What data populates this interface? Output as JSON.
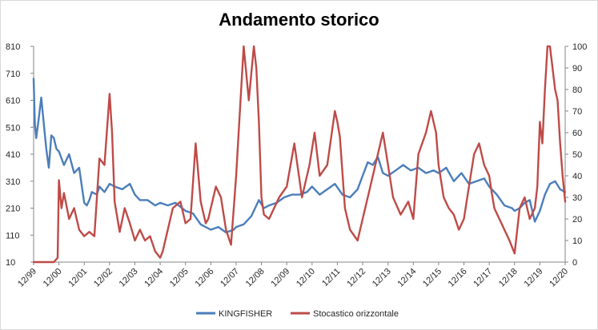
{
  "chart_data": {
    "type": "line",
    "title": "Andamento storico",
    "xlabel": "",
    "ylabel": "",
    "categories": [
      "12/99",
      "12/00",
      "12/01",
      "12/02",
      "12/03",
      "12/04",
      "12/05",
      "12/06",
      "12/07",
      "12/08",
      "12/09",
      "12/10",
      "12/11",
      "12/12",
      "12/13",
      "12/14",
      "12/15",
      "12/16",
      "12/17",
      "12/18",
      "12/19",
      "12/20"
    ],
    "y_left": {
      "ticks": [
        "810",
        "710",
        "610",
        "510",
        "410",
        "310",
        "210",
        "110",
        "10"
      ],
      "lim": [
        10,
        810
      ]
    },
    "y_right": {
      "ticks": [
        "100",
        "90",
        "80",
        "70",
        "60",
        "50",
        "40",
        "30",
        "20",
        "10",
        "0"
      ],
      "lim": [
        0,
        100
      ]
    },
    "grid": false,
    "legend_position": "bottom",
    "series": [
      {
        "name": "KINGFISHER",
        "axis": "left",
        "color": "#4a7ebb",
        "x": [
          0,
          0.05,
          0.1,
          0.2,
          0.3,
          0.5,
          0.6,
          0.7,
          0.8,
          0.9,
          1.0,
          1.2,
          1.4,
          1.6,
          1.8,
          2.0,
          2.1,
          2.2,
          2.3,
          2.5,
          2.6,
          2.8,
          3.0,
          3.2,
          3.5,
          3.8,
          4.0,
          4.2,
          4.5,
          4.8,
          5.0,
          5.3,
          5.6,
          6.0,
          6.3,
          6.6,
          7.0,
          7.3,
          7.6,
          7.9,
          8.0,
          8.3,
          8.6,
          8.9,
          9.1,
          9.3,
          9.6,
          9.9,
          10.2,
          10.5,
          10.8,
          11.0,
          11.3,
          11.6,
          11.9,
          12.2,
          12.5,
          12.8,
          13.0,
          13.2,
          13.4,
          13.6,
          13.8,
          14.0,
          14.3,
          14.6,
          14.9,
          15.2,
          15.5,
          15.8,
          16.0,
          16.3,
          16.6,
          16.9,
          17.2,
          17.5,
          17.8,
          18.0,
          18.3,
          18.6,
          18.9,
          19.0,
          19.2,
          19.4,
          19.6,
          19.8,
          20.0,
          20.2,
          20.4,
          20.6,
          20.8,
          21.0
        ],
        "values": [
          690,
          520,
          470,
          540,
          620,
          430,
          360,
          480,
          470,
          430,
          420,
          370,
          410,
          340,
          360,
          230,
          220,
          240,
          270,
          260,
          290,
          270,
          300,
          290,
          280,
          300,
          260,
          240,
          240,
          220,
          230,
          220,
          230,
          200,
          190,
          150,
          130,
          140,
          120,
          130,
          140,
          150,
          180,
          240,
          210,
          220,
          230,
          250,
          260,
          260,
          270,
          290,
          260,
          280,
          300,
          260,
          250,
          280,
          330,
          380,
          370,
          400,
          340,
          330,
          350,
          370,
          350,
          360,
          340,
          350,
          340,
          360,
          310,
          340,
          300,
          310,
          320,
          290,
          260,
          220,
          210,
          200,
          210,
          230,
          240,
          160,
          200,
          260,
          300,
          310,
          280,
          270
        ]
      },
      {
        "name": "Stocastico orizzontale",
        "axis": "right",
        "color": "#be4b48",
        "x": [
          0,
          0.8,
          0.95,
          1.0,
          1.1,
          1.2,
          1.4,
          1.6,
          1.8,
          2.0,
          2.2,
          2.4,
          2.6,
          2.8,
          3.0,
          3.1,
          3.2,
          3.4,
          3.6,
          3.8,
          4.0,
          4.2,
          4.4,
          4.6,
          4.8,
          5.0,
          5.1,
          5.3,
          5.5,
          5.8,
          6.0,
          6.2,
          6.4,
          6.6,
          6.8,
          6.9,
          7.0,
          7.2,
          7.4,
          7.6,
          7.8,
          8.0,
          8.1,
          8.3,
          8.5,
          8.7,
          8.8,
          8.9,
          9.0,
          9.1,
          9.3,
          9.5,
          9.7,
          10.0,
          10.3,
          10.6,
          10.9,
          11.1,
          11.3,
          11.6,
          11.9,
          12.0,
          12.1,
          12.3,
          12.5,
          12.8,
          13.0,
          13.2,
          13.4,
          13.6,
          13.8,
          14.0,
          14.2,
          14.5,
          14.8,
          15.0,
          15.2,
          15.5,
          15.7,
          15.9,
          16.0,
          16.2,
          16.4,
          16.6,
          16.8,
          17.0,
          17.2,
          17.4,
          17.6,
          17.8,
          18.0,
          18.1,
          18.2,
          18.4,
          18.6,
          18.8,
          19.0,
          19.2,
          19.4,
          19.6,
          19.8,
          19.9,
          20.0,
          20.1,
          20.2,
          20.3,
          20.4,
          20.5,
          20.6,
          20.7,
          20.8,
          20.9,
          21.0
        ],
        "values": [
          0,
          0,
          2,
          38,
          25,
          32,
          20,
          25,
          15,
          12,
          14,
          12,
          48,
          45,
          78,
          60,
          28,
          14,
          25,
          18,
          10,
          15,
          10,
          12,
          5,
          2,
          5,
          15,
          25,
          28,
          18,
          20,
          55,
          28,
          18,
          20,
          25,
          35,
          30,
          15,
          8,
          40,
          60,
          100,
          75,
          100,
          90,
          65,
          30,
          22,
          20,
          25,
          30,
          35,
          55,
          30,
          45,
          60,
          40,
          45,
          70,
          65,
          58,
          25,
          15,
          10,
          20,
          30,
          40,
          50,
          60,
          45,
          30,
          22,
          28,
          20,
          50,
          60,
          70,
          60,
          45,
          30,
          25,
          22,
          15,
          20,
          35,
          50,
          55,
          45,
          40,
          32,
          25,
          20,
          15,
          10,
          4,
          25,
          30,
          20,
          25,
          35,
          65,
          55,
          80,
          100,
          100,
          90,
          80,
          75,
          55,
          40,
          28
        ]
      }
    ]
  }
}
